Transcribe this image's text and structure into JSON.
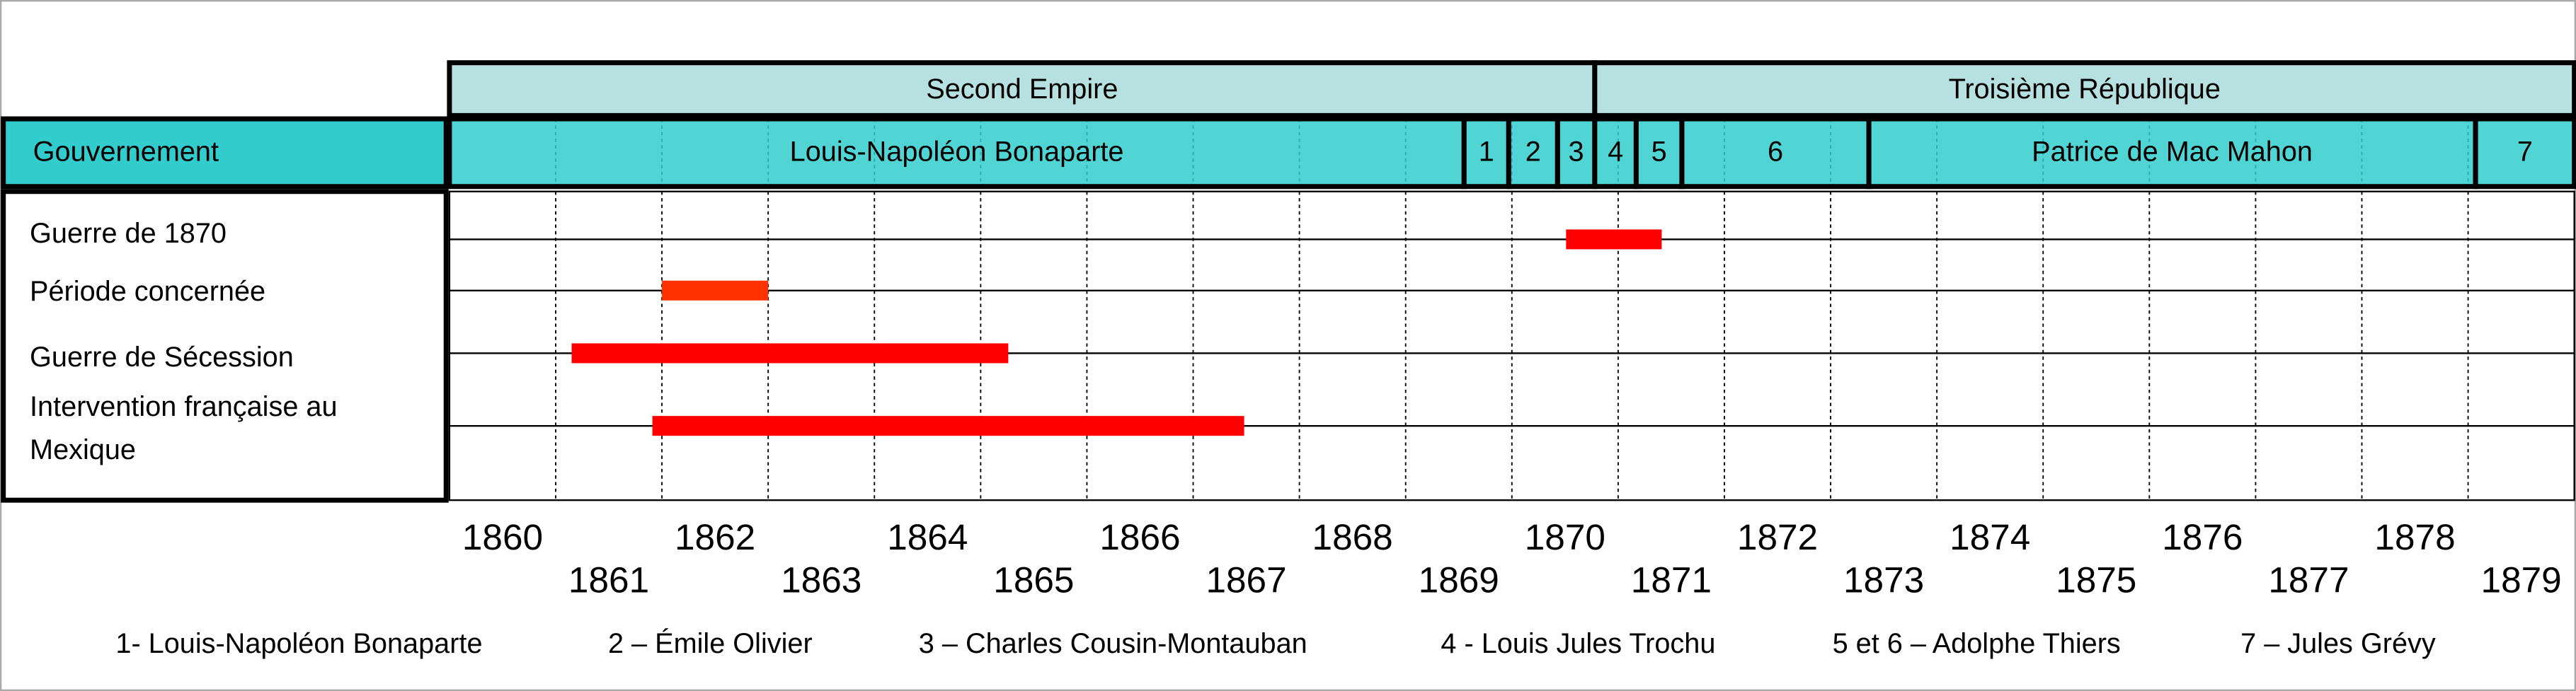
{
  "chart_data": {
    "type": "timeline",
    "xlim": [
      1860,
      1880
    ],
    "xticks": [
      1860,
      1861,
      1862,
      1863,
      1864,
      1865,
      1866,
      1867,
      1868,
      1869,
      1870,
      1871,
      1872,
      1873,
      1874,
      1875,
      1876,
      1877,
      1878,
      1879
    ],
    "grid": true,
    "regimes": [
      {
        "name": "Second Empire",
        "start": 1860,
        "end": 1870.78
      },
      {
        "name": "Troisième République",
        "start": 1870.78,
        "end": 1880
      }
    ],
    "government_label": "Gouvernement",
    "governments": [
      {
        "name": "Louis-Napoléon Bonaparte",
        "start": 1860,
        "end": 1869.55
      },
      {
        "name": "1",
        "start": 1869.55,
        "end": 1869.97
      },
      {
        "name": "2",
        "start": 1869.97,
        "end": 1870.43
      },
      {
        "name": "3",
        "start": 1870.43,
        "end": 1870.78
      },
      {
        "name": "4",
        "start": 1870.78,
        "end": 1871.17
      },
      {
        "name": "5",
        "start": 1871.17,
        "end": 1871.6
      },
      {
        "name": "6",
        "start": 1871.6,
        "end": 1873.36
      },
      {
        "name": "Patrice de Mac Mahon",
        "start": 1873.36,
        "end": 1879.07
      },
      {
        "name": "7",
        "start": 1879.07,
        "end": 1880
      }
    ],
    "series": [
      {
        "name": "Guerre de 1870",
        "color": "#ff0000",
        "start": 1870.51,
        "end": 1871.41
      },
      {
        "name": "Période concernée",
        "color": "#ff3300",
        "start": 1862,
        "end": 1863
      },
      {
        "name": "Guerre de Sécession",
        "color": "#ff0000",
        "start": 1861.15,
        "end": 1865.26
      },
      {
        "name": "Intervention française au Mexique",
        "color": "#ff0000",
        "start": 1861.91,
        "end": 1867.48
      }
    ],
    "notes": [
      "1- Louis-Napoléon Bonaparte",
      "2 – Émile Olivier",
      "3 – Charles Cousin-Montauban",
      "4 - Louis Jules Trochu",
      "5 et 6 – Adolphe Thiers",
      "7 – Jules Grévy"
    ]
  }
}
